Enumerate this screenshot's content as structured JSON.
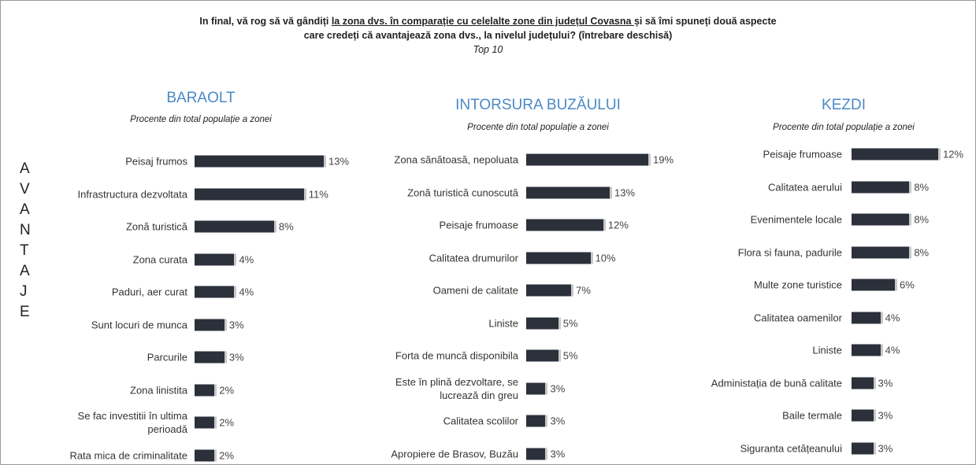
{
  "header": {
    "title_parts": [
      "In final, vă rog să vă gândiți ",
      "la zona dvs. în comparație cu celelalte zone din județul Covasna ",
      "și să îmi spuneți două aspecte"
    ],
    "title_line2": "care  credeți că avantajează zona dvs., la nivelul județului? (întrebare deschisă)",
    "title_line3": "Top 10",
    "side_label": [
      "A",
      "V",
      "A",
      "N",
      "T",
      "A",
      "J",
      "E"
    ]
  },
  "chart_data": [
    {
      "type": "bar",
      "title": "BARAOLT",
      "subtitle": "Procente din total populație a zonei",
      "color": "#2b303b",
      "categories": [
        "Peisaj frumos",
        "Infrastructura dezvoltata",
        "Zonă turistică",
        "Zona curata",
        "Paduri, aer curat",
        "Sunt locuri de munca",
        "Parcurile",
        "Zona linistita",
        "Se fac investitii în ultima perioadă",
        "Rata mica de criminalitate"
      ],
      "values": [
        13,
        11,
        8,
        4,
        4,
        3,
        3,
        2,
        2,
        2
      ],
      "value_labels": [
        "13%",
        "11%",
        "8%",
        "4%",
        "4%",
        "3%",
        "3%",
        "2%",
        "2%",
        "2%"
      ]
    },
    {
      "type": "bar",
      "title": "INTORSURA BUZĂULUI",
      "subtitle": "Procente din total populație a zonei",
      "color": "#2b303b",
      "categories": [
        "Zona sănătoasă, nepoluata",
        "Zonă turistică cunoscută",
        "Peisaje frumoase",
        "Calitatea drumurilor",
        "Oameni de calitate",
        "Liniste",
        "Forta de muncă disponibila",
        "Este în plină dezvoltare, se lucrează din greu",
        "Calitatea scolilor",
        "Apropiere de Brasov, Buzău"
      ],
      "values": [
        19,
        13,
        12,
        10,
        7,
        5,
        5,
        3,
        3,
        3
      ],
      "value_labels": [
        "19%",
        "13%",
        "12%",
        "10%",
        "7%",
        "5%",
        "5%",
        "3%",
        "3%",
        "3%"
      ]
    },
    {
      "type": "bar",
      "title": "KEZDI",
      "subtitle": "Procente din total populație a zonei",
      "color": "#2b303b",
      "categories": [
        "Peisaje frumoase",
        "Calitatea aerului",
        "Evenimentele locale",
        "Flora si fauna, padurile",
        "Multe zone turistice",
        "Calitatea oamenilor",
        "Liniste",
        "Administația de bună calitate",
        "Baile termale",
        "Siguranta cetățeanului"
      ],
      "values": [
        12,
        8,
        8,
        8,
        6,
        4,
        4,
        3,
        3,
        3
      ],
      "value_labels": [
        "12%",
        "8%",
        "8%",
        "8%",
        "6%",
        "4%",
        "4%",
        "3%",
        "3%",
        "3%"
      ]
    }
  ]
}
